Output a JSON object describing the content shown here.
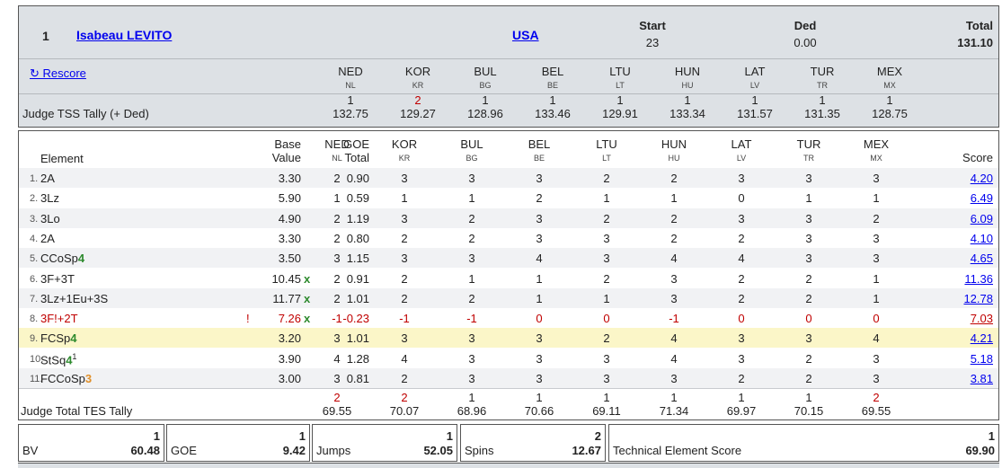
{
  "skater": {
    "rank": "1",
    "name": "Isabeau LEVITO",
    "nation": "USA"
  },
  "summary": {
    "start_label": "Start",
    "start_value": "23",
    "ded_label": "Ded",
    "ded_value": "0.00",
    "total_label": "Total",
    "total_value": "131.10"
  },
  "rescore_label": "↻ Rescore",
  "judges": [
    {
      "code": "NED",
      "sub": "NL",
      "tss_rank": "1",
      "tss_rank_red": false,
      "tss": "132.75",
      "tes_rank": "2",
      "tes_rank_red": true,
      "tes": "69.55"
    },
    {
      "code": "KOR",
      "sub": "KR",
      "tss_rank": "2",
      "tss_rank_red": true,
      "tss": "129.27",
      "tes_rank": "2",
      "tes_rank_red": true,
      "tes": "70.07"
    },
    {
      "code": "BUL",
      "sub": "BG",
      "tss_rank": "1",
      "tss_rank_red": false,
      "tss": "128.96",
      "tes_rank": "1",
      "tes_rank_red": false,
      "tes": "68.96"
    },
    {
      "code": "BEL",
      "sub": "BE",
      "tss_rank": "1",
      "tss_rank_red": false,
      "tss": "133.46",
      "tes_rank": "1",
      "tes_rank_red": false,
      "tes": "70.66"
    },
    {
      "code": "LTU",
      "sub": "LT",
      "tss_rank": "1",
      "tss_rank_red": false,
      "tss": "129.91",
      "tes_rank": "1",
      "tes_rank_red": false,
      "tes": "69.11"
    },
    {
      "code": "HUN",
      "sub": "HU",
      "tss_rank": "1",
      "tss_rank_red": false,
      "tss": "133.34",
      "tes_rank": "1",
      "tes_rank_red": false,
      "tes": "71.34"
    },
    {
      "code": "LAT",
      "sub": "LV",
      "tss_rank": "1",
      "tss_rank_red": false,
      "tss": "131.57",
      "tes_rank": "1",
      "tes_rank_red": false,
      "tes": "69.97"
    },
    {
      "code": "TUR",
      "sub": "TR",
      "tss_rank": "1",
      "tss_rank_red": false,
      "tss": "131.35",
      "tes_rank": "1",
      "tes_rank_red": false,
      "tes": "70.15"
    },
    {
      "code": "MEX",
      "sub": "MX",
      "tss_rank": "1",
      "tss_rank_red": false,
      "tss": "128.75",
      "tes_rank": "2",
      "tes_rank_red": true,
      "tes": "69.55"
    }
  ],
  "tss_label": "Judge TSS Tally (+ Ded)",
  "headers": {
    "element": "Element",
    "base1": "Base",
    "base2": "Value",
    "goe1": "GOE",
    "goe2": "Total",
    "score": "Score"
  },
  "elements": [
    {
      "idx": "1.",
      "name": "2A",
      "level": "",
      "sup": "",
      "flag": "",
      "base": "3.30",
      "x": "",
      "goe": "0.90",
      "marks": [
        "2",
        "3",
        "3",
        "3",
        "2",
        "2",
        "3",
        "3",
        "3"
      ],
      "score": "4.20",
      "red": false,
      "highlight": false
    },
    {
      "idx": "2.",
      "name": "3Lz",
      "level": "",
      "sup": "",
      "flag": "",
      "base": "5.90",
      "x": "",
      "goe": "0.59",
      "marks": [
        "1",
        "1",
        "1",
        "2",
        "1",
        "1",
        "0",
        "1",
        "1"
      ],
      "score": "6.49",
      "red": false,
      "highlight": false
    },
    {
      "idx": "3.",
      "name": "3Lo",
      "level": "",
      "sup": "",
      "flag": "",
      "base": "4.90",
      "x": "",
      "goe": "1.19",
      "marks": [
        "2",
        "3",
        "2",
        "3",
        "2",
        "2",
        "3",
        "3",
        "2"
      ],
      "score": "6.09",
      "red": false,
      "highlight": false
    },
    {
      "idx": "4.",
      "name": "2A",
      "level": "",
      "sup": "",
      "flag": "",
      "base": "3.30",
      "x": "",
      "goe": "0.80",
      "marks": [
        "2",
        "2",
        "2",
        "3",
        "3",
        "2",
        "2",
        "3",
        "3"
      ],
      "score": "4.10",
      "red": false,
      "highlight": false
    },
    {
      "idx": "5.",
      "name": "CCoSp",
      "level": "4",
      "sup": "",
      "flag": "",
      "base": "3.50",
      "x": "",
      "goe": "1.15",
      "marks": [
        "3",
        "3",
        "3",
        "4",
        "3",
        "4",
        "4",
        "3",
        "3"
      ],
      "score": "4.65",
      "red": false,
      "highlight": false
    },
    {
      "idx": "6.",
      "name": "3F+3T",
      "level": "",
      "sup": "",
      "flag": "",
      "base": "10.45",
      "x": "x",
      "goe": "0.91",
      "marks": [
        "2",
        "2",
        "1",
        "1",
        "2",
        "3",
        "2",
        "2",
        "1"
      ],
      "score": "11.36",
      "red": false,
      "highlight": false
    },
    {
      "idx": "7.",
      "name": "3Lz+1Eu+3S",
      "level": "",
      "sup": "",
      "flag": "",
      "base": "11.77",
      "x": "x",
      "goe": "1.01",
      "marks": [
        "2",
        "2",
        "2",
        "1",
        "1",
        "3",
        "2",
        "2",
        "1"
      ],
      "score": "12.78",
      "red": false,
      "highlight": false
    },
    {
      "idx": "8.",
      "name": "3F!+2T",
      "level": "",
      "sup": "",
      "flag": "!",
      "base": "7.26",
      "x": "x",
      "goe": "-0.23",
      "marks": [
        "-1",
        "-1",
        "-1",
        "0",
        "0",
        "-1",
        "0",
        "0",
        "0"
      ],
      "score": "7.03",
      "red": true,
      "highlight": false
    },
    {
      "idx": "9.",
      "name": "FCSp",
      "level": "4",
      "sup": "",
      "flag": "",
      "base": "3.20",
      "x": "",
      "goe": "1.01",
      "marks": [
        "3",
        "3",
        "3",
        "3",
        "2",
        "4",
        "3",
        "3",
        "4"
      ],
      "score": "4.21",
      "red": false,
      "highlight": true
    },
    {
      "idx": "10.",
      "name": "StSq",
      "level": "4",
      "sup": "1",
      "flag": "",
      "base": "3.90",
      "x": "",
      "goe": "1.28",
      "marks": [
        "4",
        "4",
        "3",
        "3",
        "3",
        "4",
        "3",
        "2",
        "3"
      ],
      "score": "5.18",
      "red": false,
      "highlight": false
    },
    {
      "idx": "11.",
      "name": "FCCoSp",
      "level": "3",
      "sup": "",
      "flag": "",
      "base": "3.00",
      "x": "",
      "goe": "0.81",
      "marks": [
        "3",
        "2",
        "3",
        "3",
        "3",
        "3",
        "2",
        "2",
        "3"
      ],
      "score": "3.81",
      "red": false,
      "highlight": false
    }
  ],
  "tes_label": "Judge Total TES Tally",
  "totals": [
    {
      "rank": "1",
      "label": "BV",
      "value": "60.48"
    },
    {
      "rank": "1",
      "label": "GOE",
      "value": "9.42"
    },
    {
      "rank": "1",
      "label": "Jumps",
      "value": "52.05"
    },
    {
      "rank": "2",
      "label": "Spins",
      "value": "12.67"
    },
    {
      "rank": "1",
      "label": "Technical Element Score",
      "value": "69.90"
    }
  ]
}
